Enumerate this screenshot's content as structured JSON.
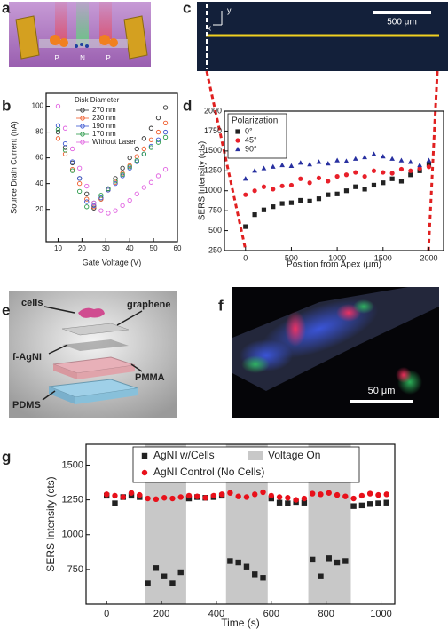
{
  "panel_labels": [
    "a",
    "b",
    "c",
    "d",
    "e",
    "f",
    "g"
  ],
  "panel_a": {
    "labels": [
      "P",
      "N",
      "P"
    ]
  },
  "panel_c": {
    "scale_bar": "500 μm",
    "x_axis": "x",
    "y_axis": "y"
  },
  "panel_e": {
    "labels": [
      "cells",
      "graphene",
      "f-AgNI",
      "PMMA",
      "PDMS"
    ]
  },
  "panel_f": {
    "scale_bar": "50 μm"
  },
  "chart_data": [
    {
      "type": "line",
      "xlabel": "Gate Voltage (V)",
      "ylabel": "Source Drain Current (nA)",
      "legend_title": "Disk Diameter",
      "x": [
        10,
        13,
        16,
        19,
        22,
        25,
        28,
        31,
        34,
        37,
        40,
        43,
        46,
        49,
        52,
        55
      ],
      "series": [
        {
          "name": "270 nm",
          "color": "#333333",
          "marker": "circle-open",
          "values": [
            80,
            68,
            56,
            44,
            32,
            21,
            28,
            36,
            44,
            52,
            60,
            67,
            75,
            83,
            91,
            99
          ]
        },
        {
          "name": "230 nm",
          "color": "#f05a28",
          "marker": "circle-open",
          "values": [
            75,
            63,
            51,
            40,
            28,
            22,
            28,
            35,
            41,
            48,
            54,
            61,
            67,
            74,
            80,
            87
          ]
        },
        {
          "name": "190 nm",
          "color": "#3a55d0",
          "marker": "circle-open",
          "values": [
            85,
            71,
            57,
            44,
            26,
            23,
            29,
            35,
            40,
            46,
            52,
            57,
            63,
            69,
            74,
            80
          ]
        },
        {
          "name": "170 nm",
          "color": "#2a9a4a",
          "marker": "circle-open",
          "values": [
            82,
            66,
            50,
            34,
            22,
            25,
            31,
            36,
            42,
            47,
            53,
            58,
            63,
            68,
            72,
            76
          ]
        },
        {
          "name": "Without Laser",
          "color": "#e060e0",
          "marker": "circle-open",
          "values": [
            100,
            83,
            67,
            52,
            38,
            25,
            19,
            17,
            19,
            23,
            27,
            32,
            37,
            41,
            46,
            51
          ]
        }
      ],
      "xlim": [
        5,
        60
      ],
      "xticks": [
        10,
        20,
        30,
        40,
        50,
        60
      ],
      "ylim": [
        -5,
        110
      ],
      "yticks": [
        20,
        40,
        60,
        80,
        100
      ]
    },
    {
      "type": "scatter",
      "xlabel": "Position from Apex (μm)",
      "ylabel": "SERS Intensity (cts)",
      "legend_title": "Polarization",
      "x": [
        0,
        100,
        200,
        300,
        400,
        500,
        600,
        700,
        800,
        900,
        1000,
        1100,
        1200,
        1300,
        1400,
        1500,
        1600,
        1700,
        1800,
        1900,
        2000
      ],
      "series": [
        {
          "name": "0°",
          "color": "#222222",
          "marker": "square",
          "values": [
            550,
            700,
            760,
            800,
            840,
            850,
            880,
            870,
            900,
            950,
            960,
            1000,
            1050,
            1020,
            1070,
            1100,
            1150,
            1120,
            1200,
            1250,
            1330
          ]
        },
        {
          "name": "45°",
          "color": "#e8202a",
          "marker": "circle",
          "values": [
            950,
            1000,
            1050,
            1020,
            1060,
            1070,
            1150,
            1100,
            1160,
            1120,
            1180,
            1200,
            1230,
            1180,
            1250,
            1230,
            1220,
            1270,
            1250,
            1280,
            1300
          ]
        },
        {
          "name": "90°",
          "color": "#2830a0",
          "marker": "triangle",
          "values": [
            1150,
            1250,
            1280,
            1300,
            1320,
            1310,
            1350,
            1330,
            1360,
            1340,
            1380,
            1370,
            1400,
            1420,
            1460,
            1430,
            1400,
            1380,
            1360,
            1320,
            1380
          ]
        }
      ],
      "xlim": [
        -230,
        2160
      ],
      "xticks": [
        0,
        500,
        1000,
        1500,
        2000
      ],
      "ylim": [
        250,
        2000
      ],
      "yticks": [
        250,
        500,
        750,
        1000,
        1250,
        1500,
        1750,
        2000
      ]
    },
    {
      "type": "scatter",
      "xlabel": "Time (s)",
      "ylabel": "SERS Intensity (cts)",
      "x": [
        0,
        30,
        60,
        90,
        120,
        150,
        180,
        210,
        240,
        270,
        300,
        330,
        360,
        390,
        420,
        450,
        480,
        510,
        540,
        570,
        600,
        630,
        660,
        690,
        720,
        750,
        780,
        810,
        840,
        870,
        900,
        930,
        960,
        990,
        1020
      ],
      "series": [
        {
          "name": "AgNI w/Cells",
          "color": "#222222",
          "marker": "square",
          "values": [
            1280,
            1225,
            1270,
            1280,
            1270,
            650,
            760,
            700,
            650,
            730,
            1260,
            1270,
            1265,
            1270,
            1280,
            810,
            800,
            770,
            715,
            690,
            1260,
            1230,
            1225,
            1235,
            1230,
            820,
            700,
            830,
            800,
            810,
            1205,
            1210,
            1220,
            1225,
            1230
          ]
        },
        {
          "name": "AgNI Control (No Cells)",
          "color": "#e8101a",
          "marker": "circle",
          "values": [
            1290,
            1280,
            1270,
            1300,
            1285,
            1260,
            1255,
            1265,
            1260,
            1270,
            1280,
            1275,
            1265,
            1280,
            1290,
            1300,
            1275,
            1270,
            1290,
            1305,
            1280,
            1270,
            1265,
            1250,
            1260,
            1295,
            1290,
            1300,
            1285,
            1275,
            1260,
            1280,
            1295,
            1285,
            1290
          ]
        }
      ],
      "shaded_label": "Voltage On",
      "shaded_color": "#c8c8c8",
      "shaded_regions": [
        [
          140,
          290
        ],
        [
          435,
          587
        ],
        [
          735,
          890
        ]
      ],
      "xlim": [
        -75,
        1050
      ],
      "xticks": [
        0,
        200,
        400,
        600,
        800,
        1000
      ],
      "ylim": [
        500,
        1650
      ],
      "yticks": [
        750,
        1000,
        1250,
        1500
      ]
    }
  ]
}
